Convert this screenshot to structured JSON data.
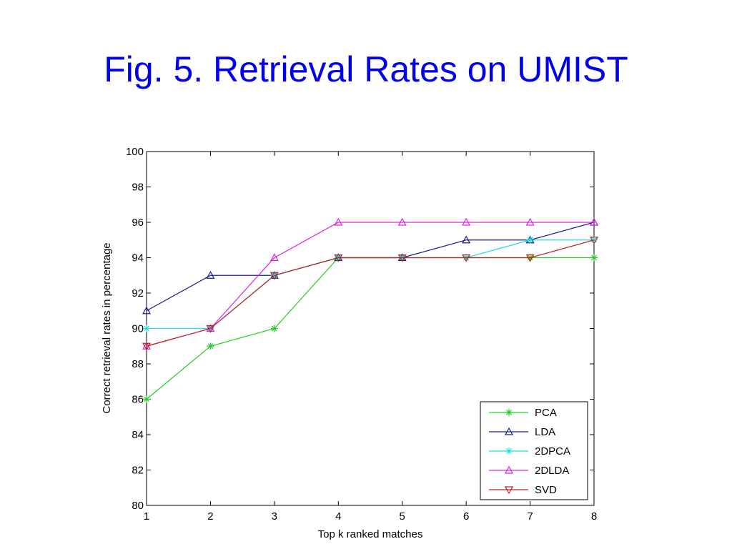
{
  "slide": {
    "title": "Fig. 5. Retrieval Rates on UMIST"
  },
  "chart_data": {
    "type": "line",
    "xlabel": "Top k ranked matches",
    "ylabel": "Correct retrieval rates in percentage",
    "x": [
      1,
      2,
      3,
      4,
      5,
      6,
      7,
      8
    ],
    "xlim": [
      1,
      8
    ],
    "ylim": [
      80,
      100
    ],
    "xticks": [
      "1",
      "2",
      "3",
      "4",
      "5",
      "6",
      "7",
      "8"
    ],
    "yticks": [
      "80",
      "82",
      "84",
      "86",
      "88",
      "90",
      "92",
      "94",
      "96",
      "98",
      "100"
    ],
    "grid": false,
    "legend_position": "bottom-right",
    "series": [
      {
        "name": "PCA",
        "color": "#22cc22",
        "marker": "star",
        "values": [
          86,
          89,
          90,
          94,
          94,
          94,
          94,
          94
        ]
      },
      {
        "name": "LDA",
        "color": "#1a1a8c",
        "marker": "triangle-up",
        "values": [
          91,
          93,
          93,
          94,
          94,
          95,
          95,
          96
        ]
      },
      {
        "name": "2DPCA",
        "color": "#22dddd",
        "marker": "star",
        "values": [
          90,
          90,
          93,
          94,
          94,
          94,
          95,
          95
        ]
      },
      {
        "name": "2DLDA",
        "color": "#dd22dd",
        "marker": "triangle-up",
        "values": [
          89,
          90,
          94,
          96,
          96,
          96,
          96,
          96
        ]
      },
      {
        "name": "SVD",
        "color": "#bb2222",
        "marker": "triangle-down",
        "values": [
          89,
          90,
          93,
          94,
          94,
          94,
          94,
          95
        ]
      }
    ]
  }
}
